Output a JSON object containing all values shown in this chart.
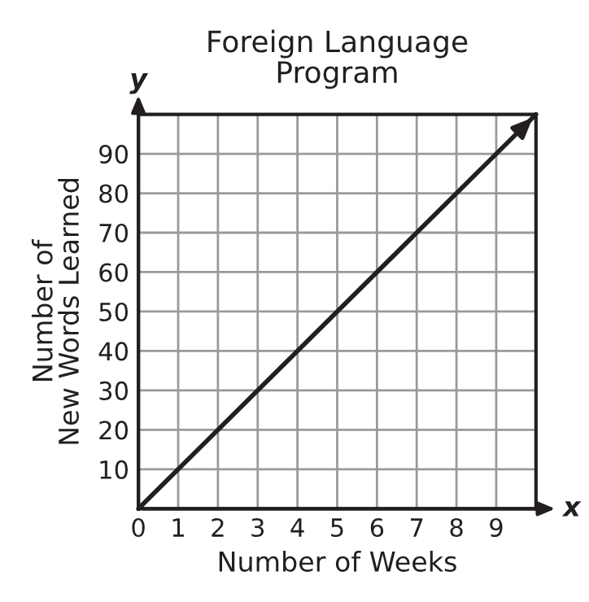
{
  "chart_data": {
    "type": "line",
    "title": "Foreign Language\nProgram",
    "xlabel": "Number of Weeks",
    "ylabel": "Number of\nNew Words Learned",
    "x": [
      0,
      10
    ],
    "series": [
      {
        "color": "#231f20",
        "values": [
          0,
          100
        ]
      }
    ],
    "xlim": [
      0,
      10
    ],
    "ylim": [
      0,
      100
    ],
    "xticks": [
      0,
      1,
      2,
      3,
      4,
      5,
      6,
      7,
      8,
      9
    ],
    "yticks": [
      10,
      20,
      30,
      40,
      50,
      60,
      70,
      80,
      90
    ],
    "grid": true,
    "marker": "none",
    "line_style": "solid",
    "annotations": [
      "x",
      "y"
    ]
  }
}
